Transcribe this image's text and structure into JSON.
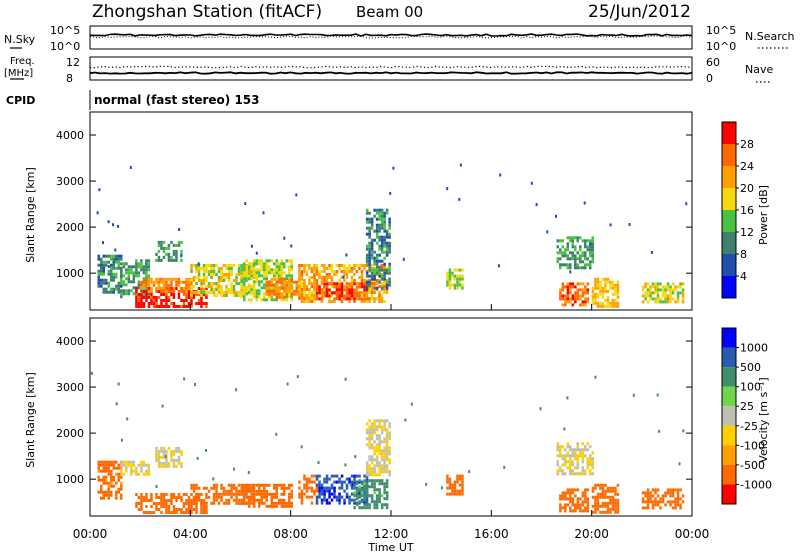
{
  "header": {
    "station": "Zhongshan Station (fitACF)",
    "beam": "Beam 00",
    "date": "25/Jun/2012"
  },
  "summary": {
    "nsky_label": "N.Sky",
    "nsky_ticks": [
      "10^5",
      "10^0"
    ],
    "nsearch_label": "N.Search",
    "nsearch_ticks": [
      "10^5",
      "10^0"
    ],
    "freq_label_line1": "Freq.",
    "freq_label_line2": "[MHz]",
    "freq_ticks": [
      "12",
      "8"
    ],
    "nave_label": "Nave",
    "nave_ticks": [
      "60",
      "0"
    ],
    "cpid_label": "CPID",
    "cpid_value": "normal (fast stereo) 153"
  },
  "colors": {
    "power_scale": [
      "#0000ff",
      "#1f4fae",
      "#3e7f6e",
      "#48c23f",
      "#f5d90a",
      "#ffa000",
      "#ff6a00",
      "#ff0000"
    ],
    "velocity_scale": [
      "#ff0000",
      "#ff6a00",
      "#ffa000",
      "#ffd000",
      "#bfbfb2",
      "#6fd64a",
      "#3f8f6a",
      "#2a5bb0",
      "#0000ff"
    ]
  },
  "chart_data": [
    {
      "type": "heatmap",
      "name": "power",
      "ylabel": "Slant Range [km]",
      "xlabel": "",
      "yticks": [
        "4000",
        "3000",
        "2000",
        "1000"
      ],
      "ylim": [
        200,
        4500
      ],
      "xlim_hours": [
        0,
        24
      ],
      "colorbar_label": "Power [dB]",
      "colorbar_ticks": [
        "28",
        "24",
        "20",
        "16",
        "12",
        "8",
        "4"
      ],
      "vmin": 0,
      "vmax": 32,
      "cells": [
        {
          "t": [
            0.3,
            1.2
          ],
          "r": [
            600,
            1400
          ],
          "v": 10
        },
        {
          "t": [
            1.2,
            2.3
          ],
          "r": [
            500,
            1300
          ],
          "v": 12
        },
        {
          "t": [
            1.8,
            4.6
          ],
          "r": [
            250,
            700
          ],
          "v": 30
        },
        {
          "t": [
            2.0,
            4.0
          ],
          "r": [
            600,
            900
          ],
          "v": 24
        },
        {
          "t": [
            2.6,
            3.6
          ],
          "r": [
            1300,
            1700
          ],
          "v": 12
        },
        {
          "t": [
            4.0,
            6.5
          ],
          "r": [
            500,
            1200
          ],
          "v": 18
        },
        {
          "t": [
            6.0,
            8.0
          ],
          "r": [
            400,
            1300
          ],
          "v": 16
        },
        {
          "t": [
            7.0,
            8.5
          ],
          "r": [
            500,
            900
          ],
          "v": 24
        },
        {
          "t": [
            8.3,
            11.8
          ],
          "r": [
            400,
            1200
          ],
          "v": 22
        },
        {
          "t": [
            9.0,
            11.0
          ],
          "r": [
            450,
            800
          ],
          "v": 28
        },
        {
          "t": [
            11.0,
            11.9
          ],
          "r": [
            700,
            2400
          ],
          "v": 10
        },
        {
          "t": [
            14.2,
            14.8
          ],
          "r": [
            700,
            1100
          ],
          "v": 16
        },
        {
          "t": [
            18.6,
            20.0
          ],
          "r": [
            1100,
            1800
          ],
          "v": 12
        },
        {
          "t": [
            18.7,
            19.8
          ],
          "r": [
            300,
            800
          ],
          "v": 26
        },
        {
          "t": [
            20.0,
            21.0
          ],
          "r": [
            300,
            900
          ],
          "v": 20
        },
        {
          "t": [
            22.0,
            23.6
          ],
          "r": [
            400,
            800
          ],
          "v": 18
        }
      ]
    },
    {
      "type": "heatmap",
      "name": "velocity",
      "ylabel": "Slant Range [km]",
      "xlabel": "Time UT",
      "yticks": [
        "4000",
        "3000",
        "2000",
        "1000"
      ],
      "xticks": [
        "00:00",
        "04:00",
        "08:00",
        "12:00",
        "16:00",
        "20:00",
        "00:00"
      ],
      "ylim": [
        200,
        4500
      ],
      "xlim_hours": [
        0,
        24
      ],
      "colorbar_label": "Velocity [m s⁻¹]",
      "colorbar_ticks": [
        "1000",
        "500",
        "100",
        "25",
        "-25",
        "-100",
        "-500",
        "-1000"
      ],
      "cells": [
        {
          "t": [
            0.3,
            1.2
          ],
          "r": [
            600,
            1400
          ],
          "v": -150
        },
        {
          "t": [
            1.2,
            2.3
          ],
          "r": [
            1100,
            1400
          ],
          "v": 0
        },
        {
          "t": [
            1.8,
            4.6
          ],
          "r": [
            250,
            700
          ],
          "v": -300
        },
        {
          "t": [
            2.6,
            3.6
          ],
          "r": [
            1300,
            1700
          ],
          "v": 0
        },
        {
          "t": [
            4.0,
            6.5
          ],
          "r": [
            500,
            900
          ],
          "v": -300
        },
        {
          "t": [
            6.0,
            8.0
          ],
          "r": [
            400,
            900
          ],
          "v": -200
        },
        {
          "t": [
            8.3,
            9.0
          ],
          "r": [
            500,
            1100
          ],
          "v": -150
        },
        {
          "t": [
            9.0,
            11.0
          ],
          "r": [
            500,
            1100
          ],
          "v": 900
        },
        {
          "t": [
            10.5,
            11.8
          ],
          "r": [
            400,
            1000
          ],
          "v": 150
        },
        {
          "t": [
            11.0,
            11.9
          ],
          "r": [
            1100,
            2300
          ],
          "v": 0
        },
        {
          "t": [
            14.2,
            14.8
          ],
          "r": [
            700,
            1100
          ],
          "v": -200
        },
        {
          "t": [
            18.6,
            20.0
          ],
          "r": [
            1100,
            1800
          ],
          "v": 0
        },
        {
          "t": [
            18.7,
            19.8
          ],
          "r": [
            300,
            800
          ],
          "v": -250
        },
        {
          "t": [
            20.0,
            21.0
          ],
          "r": [
            300,
            900
          ],
          "v": -300
        },
        {
          "t": [
            22.0,
            23.6
          ],
          "r": [
            400,
            800
          ],
          "v": -250
        }
      ]
    }
  ]
}
